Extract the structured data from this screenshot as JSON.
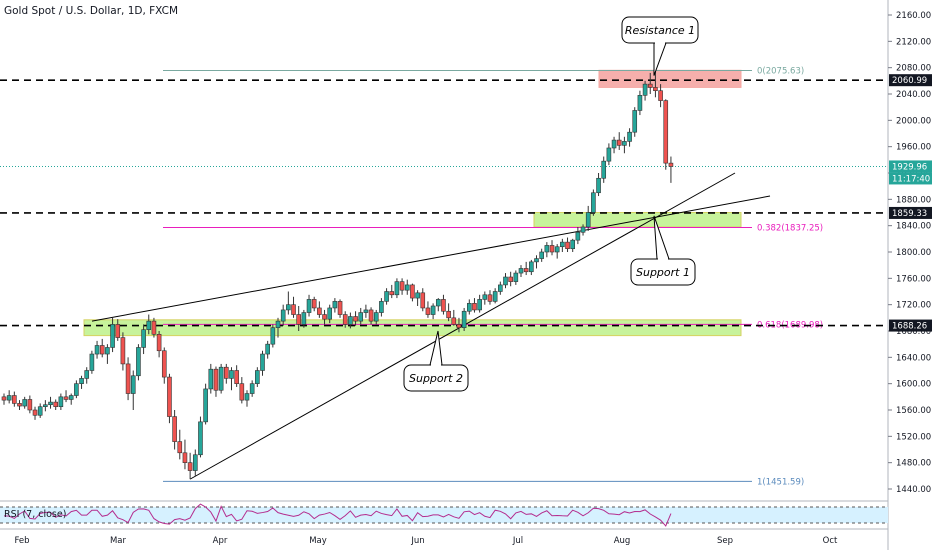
{
  "title": "Gold Spot / U.S. Dollar, 1D, FXCM",
  "rsi_label": "RSI (7, close)",
  "colors": {
    "up": "#26a69a",
    "down": "#ef5350",
    "wick": "#333333",
    "fib": "#7aa9a0",
    "magenta": "#e91ebd",
    "blue_line": "#5b8bbd",
    "green_zone": "#b5f07a",
    "red_zone": "#f6a7a4",
    "rsi_line": "#b42d8e",
    "rsi_band": "#d6f1ff"
  },
  "chart_data": {
    "type": "candlestick",
    "title": "Gold Spot / U.S. Dollar, 1D, FXCM",
    "ylim": [
      1420,
      2180
    ],
    "y_ticks": [
      1440,
      1480,
      1520,
      1560,
      1600,
      1640,
      1680,
      1720,
      1760,
      1800,
      1840,
      1880,
      1920,
      1960,
      2000,
      2040,
      2080,
      2120,
      2160
    ],
    "x_ticks": [
      "Feb",
      "Mar",
      "Apr",
      "May",
      "Jun",
      "Jul",
      "Aug",
      "Sep",
      "Oct"
    ],
    "horizontal_levels": [
      {
        "label": "2060.99",
        "value": 2060.99
      },
      {
        "label": "1859.33",
        "value": 1859.33
      },
      {
        "label": "1688.26",
        "value": 1688.26
      }
    ],
    "current_price": {
      "label": "1929.96",
      "value": 1929.96,
      "countdown": "11:17:40"
    },
    "fib_levels": [
      {
        "label": "0(2075.63)",
        "value": 2075.63
      },
      {
        "label": "0.382(1837.25)",
        "value": 1837.25
      },
      {
        "label": "0.618(1689.98)",
        "value": 1689.98
      },
      {
        "label": "1(1451.59)",
        "value": 1451.59
      }
    ],
    "zones": [
      {
        "name": "resistance",
        "from": 2050,
        "to": 2076
      },
      {
        "name": "support_1",
        "from": 1838,
        "to": 1860
      },
      {
        "name": "support_2",
        "from": 1673,
        "to": 1697
      }
    ],
    "annotations": [
      "Resistance 1",
      "Support 1",
      "Support 2"
    ],
    "ohlc": [
      [
        1580,
        1585,
        1568,
        1575
      ],
      [
        1575,
        1590,
        1570,
        1582
      ],
      [
        1582,
        1588,
        1565,
        1570
      ],
      [
        1570,
        1575,
        1560,
        1566
      ],
      [
        1566,
        1580,
        1562,
        1576
      ],
      [
        1576,
        1582,
        1555,
        1560
      ],
      [
        1560,
        1565,
        1545,
        1552
      ],
      [
        1552,
        1570,
        1548,
        1565
      ],
      [
        1565,
        1575,
        1558,
        1568
      ],
      [
        1568,
        1580,
        1562,
        1572
      ],
      [
        1572,
        1576,
        1560,
        1565
      ],
      [
        1565,
        1585,
        1560,
        1580
      ],
      [
        1580,
        1590,
        1572,
        1576
      ],
      [
        1576,
        1585,
        1568,
        1582
      ],
      [
        1582,
        1605,
        1578,
        1600
      ],
      [
        1600,
        1612,
        1592,
        1608
      ],
      [
        1608,
        1625,
        1600,
        1620
      ],
      [
        1620,
        1650,
        1615,
        1645
      ],
      [
        1645,
        1665,
        1638,
        1658
      ],
      [
        1658,
        1668,
        1640,
        1645
      ],
      [
        1645,
        1660,
        1630,
        1655
      ],
      [
        1655,
        1700,
        1648,
        1690
      ],
      [
        1690,
        1698,
        1665,
        1670
      ],
      [
        1670,
        1678,
        1620,
        1630
      ],
      [
        1630,
        1640,
        1575,
        1585
      ],
      [
        1585,
        1620,
        1560,
        1612
      ],
      [
        1612,
        1660,
        1605,
        1655
      ],
      [
        1655,
        1690,
        1645,
        1682
      ],
      [
        1682,
        1705,
        1675,
        1695
      ],
      [
        1695,
        1700,
        1670,
        1675
      ],
      [
        1675,
        1680,
        1640,
        1650
      ],
      [
        1650,
        1655,
        1600,
        1610
      ],
      [
        1610,
        1615,
        1540,
        1550
      ],
      [
        1550,
        1560,
        1500,
        1512
      ],
      [
        1512,
        1530,
        1485,
        1495
      ],
      [
        1495,
        1515,
        1470,
        1480
      ],
      [
        1480,
        1495,
        1455,
        1468
      ],
      [
        1468,
        1500,
        1460,
        1492
      ],
      [
        1492,
        1550,
        1488,
        1542
      ],
      [
        1542,
        1600,
        1538,
        1592
      ],
      [
        1592,
        1630,
        1585,
        1622
      ],
      [
        1622,
        1626,
        1580,
        1590
      ],
      [
        1590,
        1630,
        1585,
        1625
      ],
      [
        1625,
        1630,
        1600,
        1608
      ],
      [
        1608,
        1625,
        1590,
        1620
      ],
      [
        1620,
        1628,
        1595,
        1600
      ],
      [
        1600,
        1610,
        1570,
        1575
      ],
      [
        1575,
        1590,
        1565,
        1585
      ],
      [
        1585,
        1605,
        1580,
        1600
      ],
      [
        1600,
        1625,
        1595,
        1620
      ],
      [
        1620,
        1650,
        1612,
        1645
      ],
      [
        1645,
        1665,
        1638,
        1660
      ],
      [
        1660,
        1690,
        1655,
        1685
      ],
      [
        1685,
        1700,
        1670,
        1695
      ],
      [
        1695,
        1720,
        1688,
        1712
      ],
      [
        1712,
        1740,
        1705,
        1720
      ],
      [
        1720,
        1732,
        1700,
        1705
      ],
      [
        1705,
        1718,
        1680,
        1690
      ],
      [
        1690,
        1712,
        1685,
        1708
      ],
      [
        1708,
        1735,
        1702,
        1728
      ],
      [
        1728,
        1732,
        1710,
        1715
      ],
      [
        1715,
        1725,
        1700,
        1705
      ],
      [
        1705,
        1712,
        1690,
        1698
      ],
      [
        1698,
        1720,
        1692,
        1715
      ],
      [
        1715,
        1730,
        1708,
        1725
      ],
      [
        1725,
        1728,
        1700,
        1705
      ],
      [
        1705,
        1710,
        1685,
        1690
      ],
      [
        1690,
        1708,
        1684,
        1702
      ],
      [
        1702,
        1710,
        1688,
        1695
      ],
      [
        1695,
        1715,
        1690,
        1708
      ],
      [
        1708,
        1720,
        1700,
        1712
      ],
      [
        1712,
        1716,
        1690,
        1695
      ],
      [
        1695,
        1712,
        1690,
        1708
      ],
      [
        1708,
        1730,
        1702,
        1725
      ],
      [
        1725,
        1745,
        1720,
        1740
      ],
      [
        1740,
        1750,
        1730,
        1735
      ],
      [
        1735,
        1760,
        1730,
        1755
      ],
      [
        1755,
        1760,
        1735,
        1742
      ],
      [
        1742,
        1758,
        1735,
        1750
      ],
      [
        1750,
        1752,
        1725,
        1730
      ],
      [
        1730,
        1742,
        1718,
        1738
      ],
      [
        1738,
        1745,
        1710,
        1715
      ],
      [
        1715,
        1725,
        1700,
        1705
      ],
      [
        1705,
        1722,
        1698,
        1718
      ],
      [
        1718,
        1730,
        1710,
        1728
      ],
      [
        1728,
        1735,
        1705,
        1710
      ],
      [
        1710,
        1722,
        1695,
        1700
      ],
      [
        1700,
        1712,
        1688,
        1690
      ],
      [
        1690,
        1700,
        1678,
        1685
      ],
      [
        1685,
        1715,
        1680,
        1710
      ],
      [
        1710,
        1728,
        1705,
        1722
      ],
      [
        1722,
        1730,
        1708,
        1712
      ],
      [
        1712,
        1735,
        1708,
        1728
      ],
      [
        1728,
        1740,
        1720,
        1735
      ],
      [
        1735,
        1742,
        1720,
        1725
      ],
      [
        1725,
        1745,
        1722,
        1740
      ],
      [
        1740,
        1755,
        1735,
        1750
      ],
      [
        1750,
        1768,
        1745,
        1762
      ],
      [
        1762,
        1770,
        1748,
        1755
      ],
      [
        1755,
        1772,
        1750,
        1768
      ],
      [
        1768,
        1780,
        1762,
        1775
      ],
      [
        1775,
        1785,
        1765,
        1770
      ],
      [
        1770,
        1788,
        1765,
        1785
      ],
      [
        1785,
        1795,
        1775,
        1790
      ],
      [
        1790,
        1805,
        1785,
        1800
      ],
      [
        1800,
        1815,
        1792,
        1810
      ],
      [
        1810,
        1818,
        1795,
        1800
      ],
      [
        1800,
        1812,
        1790,
        1808
      ],
      [
        1808,
        1820,
        1800,
        1815
      ],
      [
        1815,
        1822,
        1800,
        1805
      ],
      [
        1805,
        1820,
        1800,
        1818
      ],
      [
        1818,
        1838,
        1812,
        1830
      ],
      [
        1830,
        1842,
        1825,
        1838
      ],
      [
        1838,
        1870,
        1832,
        1860
      ],
      [
        1860,
        1895,
        1855,
        1890
      ],
      [
        1890,
        1920,
        1885,
        1912
      ],
      [
        1912,
        1945,
        1905,
        1938
      ],
      [
        1938,
        1965,
        1932,
        1958
      ],
      [
        1958,
        1975,
        1950,
        1970
      ],
      [
        1970,
        1982,
        1955,
        1962
      ],
      [
        1962,
        1975,
        1950,
        1968
      ],
      [
        1968,
        1988,
        1960,
        1982
      ],
      [
        1982,
        2020,
        1975,
        2015
      ],
      [
        2015,
        2045,
        2008,
        2038
      ],
      [
        2038,
        2060,
        2030,
        2055
      ],
      [
        2055,
        2072,
        2040,
        2050
      ],
      [
        2050,
        2075,
        2035,
        2045
      ],
      [
        2045,
        2055,
        2020,
        2030
      ],
      [
        2030,
        2032,
        1925,
        1935
      ],
      [
        1935,
        1945,
        1905,
        1930
      ]
    ],
    "rsi_levels": [
      70,
      30
    ]
  }
}
